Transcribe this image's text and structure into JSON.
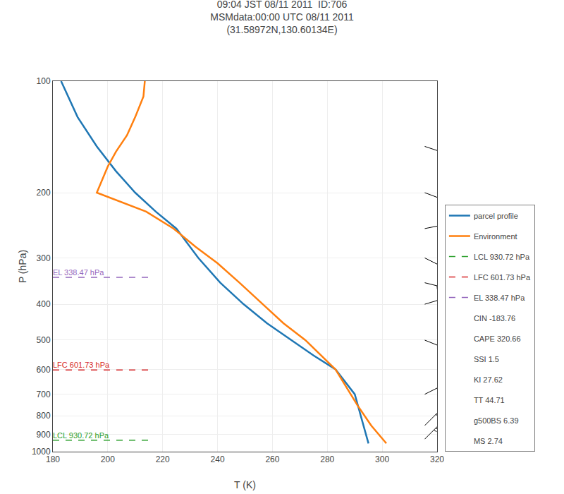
{
  "chart_data": {
    "type": "line",
    "title": "09:04 JST 08/11 2011  ID:706\nMSMdata:00:00 UTC 08/11 2011\n(31.58972N,130.60134E)",
    "xlabel": "T (K)",
    "ylabel": "P (hPa)",
    "xlim": [
      180,
      320
    ],
    "ylim": [
      100,
      1000
    ],
    "xticks": [
      180,
      200,
      220,
      240,
      260,
      280,
      300,
      320
    ],
    "yticks": [
      100,
      200,
      300,
      400,
      500,
      600,
      700,
      800,
      900,
      1000
    ],
    "log": "y",
    "grid": true,
    "legend": "lower right",
    "series": [
      {
        "name": "parcel profile",
        "color": "#1f77b4",
        "line_style": "solid",
        "x": [
          183.0,
          189.0,
          196.0,
          203.0,
          210.0,
          217.5,
          225.0,
          233.0,
          241.0,
          249.5,
          258.0,
          267.0,
          275.0,
          283.0,
          290.0,
          295.0
        ],
        "values": [
          100,
          125,
          150,
          175,
          200,
          225,
          250,
          300,
          350,
          400,
          450,
          500,
          550,
          600,
          700,
          950
        ]
      },
      {
        "name": "Environment",
        "color": "#ff7f0e",
        "line_style": "solid",
        "x": [
          213.5,
          213.0,
          210.0,
          207.0,
          203.0,
          200.0,
          196.0,
          214.0,
          224.0,
          232.0,
          240.0,
          248.0,
          256.5,
          264.0,
          272.0,
          283.0,
          291.0,
          296.0,
          301.5
        ],
        "values": [
          100,
          110,
          125,
          140,
          155,
          170,
          200,
          225,
          250,
          280,
          310,
          350,
          400,
          450,
          500,
          600,
          750,
          850,
          950
        ]
      },
      {
        "name": "LCL 930.72 hPa",
        "type": "hline",
        "color": "#2ca02c",
        "line_style": "dashed",
        "values": [
          930.72
        ]
      },
      {
        "name": "LFC 601.73 hPa",
        "type": "hline",
        "color": "#d62728",
        "line_style": "dashed",
        "values": [
          601.73
        ]
      },
      {
        "name": "EL 338.47 hPa",
        "type": "hline",
        "color": "#9467bd",
        "line_style": "dashed",
        "values": [
          338.47
        ]
      }
    ],
    "annotations": [
      "CIN -183.76",
      "CAPE 320.66",
      "SSI 1.5",
      "KI 27.62",
      "TT 44.71",
      "g500BS 6.39",
      "MS 2.74"
    ],
    "wind_barbs": {
      "x": 315.5,
      "P": [
        100,
        150,
        200,
        250,
        300,
        350,
        400,
        500,
        700,
        850,
        925
      ],
      "u": [
        -2,
        -6,
        -8,
        -10,
        -10,
        -12,
        -10,
        -5,
        -8,
        -5,
        -8
      ],
      "v": [
        -4,
        2,
        3,
        -2,
        5,
        3,
        -3,
        2,
        -4,
        -5,
        -8
      ]
    }
  }
}
